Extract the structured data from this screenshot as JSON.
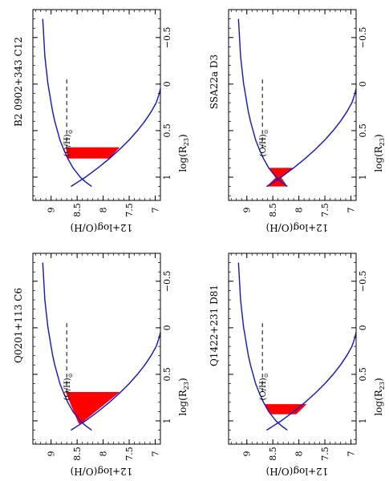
{
  "figure": {
    "panel_order_note": "",
    "chart_data": [
      {
        "type": "line",
        "title": "Q0201+113 C6",
        "xlabel": "log(R",
        "xlabel_sub": "23",
        "xlabel_close": ")",
        "ylabel": "12+log(O/H)",
        "xlim": [
          -0.8,
          1.25
        ],
        "ylim": [
          6.9,
          9.35
        ],
        "xticks": [
          "−0.5",
          "0",
          "0.5",
          "1"
        ],
        "yticks": [
          "7",
          "7.5",
          "8",
          "8.5",
          "9"
        ],
        "solar_label": "(O/H)",
        "solar_sub": "⊙",
        "solar_value": 8.7,
        "series": [
          {
            "role": "upper-branch",
            "x": [
              1.1,
              1.05,
              1.0,
              0.9,
              0.8,
              0.7,
              0.6,
              0.5,
              0.4,
              0.3,
              0.2,
              0.1,
              0.0,
              -0.1,
              -0.2,
              -0.3,
              -0.4,
              -0.5,
              -0.6,
              -0.7
            ],
            "y": [
              8.22,
              8.34,
              8.44,
              8.58,
              8.68,
              8.76,
              8.83,
              8.88,
              8.93,
              8.97,
              9.0,
              9.03,
              9.06,
              9.08,
              9.1,
              9.12,
              9.13,
              9.14,
              9.15,
              9.16
            ]
          },
          {
            "role": "lower-branch",
            "x": [
              1.1,
              1.05,
              1.0,
              0.9,
              0.8,
              0.7,
              0.6,
              0.5,
              0.4,
              0.3,
              0.2,
              0.1,
              0.05
            ],
            "y": [
              8.62,
              8.48,
              8.34,
              8.1,
              7.88,
              7.68,
              7.5,
              7.34,
              7.2,
              7.08,
              6.98,
              6.92,
              6.9
            ]
          }
        ],
        "region": {
          "x_min": 0.69,
          "x_max": 1.03,
          "polygon": [
            [
              0.69,
              8.72
            ],
            [
              1.03,
              8.47
            ],
            [
              1.03,
              8.43
            ],
            [
              0.69,
              7.68
            ]
          ]
        }
      },
      {
        "type": "line",
        "title": "B2 0902+343 C12",
        "xlabel": "log(R",
        "xlabel_sub": "23",
        "xlabel_close": ")",
        "ylabel": "12+log(O/H)",
        "xlim": [
          -0.8,
          1.25
        ],
        "ylim": [
          6.9,
          9.35
        ],
        "xticks": [
          "−0.5",
          "0",
          "0.5",
          "1"
        ],
        "yticks": [
          "7",
          "7.5",
          "8",
          "8.5",
          "9"
        ],
        "solar_label": "(O/H)",
        "solar_sub": "⊙",
        "solar_value": 8.7,
        "series": [
          {
            "role": "upper-branch",
            "x": [
              1.1,
              1.05,
              1.0,
              0.9,
              0.8,
              0.7,
              0.6,
              0.5,
              0.4,
              0.3,
              0.2,
              0.1,
              0.0,
              -0.1,
              -0.2,
              -0.3,
              -0.4,
              -0.5,
              -0.6,
              -0.7
            ],
            "y": [
              8.22,
              8.34,
              8.44,
              8.58,
              8.68,
              8.76,
              8.83,
              8.88,
              8.93,
              8.97,
              9.0,
              9.03,
              9.06,
              9.08,
              9.1,
              9.12,
              9.13,
              9.14,
              9.15,
              9.16
            ]
          },
          {
            "role": "lower-branch",
            "x": [
              1.1,
              1.05,
              1.0,
              0.9,
              0.8,
              0.7,
              0.6,
              0.5,
              0.4,
              0.3,
              0.2,
              0.1,
              0.05
            ],
            "y": [
              8.62,
              8.48,
              8.34,
              8.1,
              7.88,
              7.68,
              7.5,
              7.34,
              7.2,
              7.08,
              6.98,
              6.92,
              6.9
            ]
          }
        ],
        "region": {
          "x_min": 0.68,
          "x_max": 0.8,
          "polygon": [
            [
              0.68,
              8.72
            ],
            [
              0.8,
              8.68
            ],
            [
              0.8,
              7.88
            ],
            [
              0.68,
              7.68
            ]
          ]
        }
      },
      {
        "type": "line",
        "title": "Q1422+231 D81",
        "xlabel": "log(R",
        "xlabel_sub": "23",
        "xlabel_close": ")",
        "ylabel": "12+log(O/H)",
        "xlim": [
          -0.8,
          1.25
        ],
        "ylim": [
          6.9,
          9.35
        ],
        "xticks": [
          "−0.5",
          "0",
          "0.5",
          "1"
        ],
        "yticks": [
          "7",
          "7.5",
          "8",
          "8.5",
          "9"
        ],
        "solar_label": "(O/H)",
        "solar_sub": "⊙",
        "solar_value": 8.7,
        "series": [
          {
            "role": "upper-branch",
            "x": [
              1.1,
              1.05,
              1.0,
              0.9,
              0.8,
              0.7,
              0.6,
              0.5,
              0.4,
              0.3,
              0.2,
              0.1,
              0.0,
              -0.1,
              -0.2,
              -0.3,
              -0.4,
              -0.5,
              -0.6,
              -0.7
            ],
            "y": [
              8.22,
              8.34,
              8.44,
              8.58,
              8.68,
              8.76,
              8.83,
              8.88,
              8.93,
              8.97,
              9.0,
              9.03,
              9.06,
              9.08,
              9.1,
              9.12,
              9.13,
              9.14,
              9.15,
              9.16
            ]
          },
          {
            "role": "lower-branch",
            "x": [
              1.1,
              1.05,
              1.0,
              0.9,
              0.8,
              0.7,
              0.6,
              0.5,
              0.4,
              0.3,
              0.2,
              0.1,
              0.05
            ],
            "y": [
              8.62,
              8.48,
              8.34,
              8.1,
              7.88,
              7.68,
              7.5,
              7.34,
              7.2,
              7.08,
              6.98,
              6.92,
              6.9
            ]
          }
        ],
        "region": {
          "x_min": 0.82,
          "x_max": 0.93,
          "polygon": [
            [
              0.82,
              8.66
            ],
            [
              0.93,
              8.55
            ],
            [
              0.93,
              8.05
            ],
            [
              0.82,
              7.85
            ]
          ]
        }
      },
      {
        "type": "line",
        "title": "SSA22a D3",
        "xlabel": "log(R",
        "xlabel_sub": "23",
        "xlabel_close": ")",
        "ylabel": "12+log(O/H)",
        "xlim": [
          -0.8,
          1.25
        ],
        "ylim": [
          6.9,
          9.35
        ],
        "xticks": [
          "−0.5",
          "0",
          "0.5",
          "1"
        ],
        "yticks": [
          "7",
          "7.5",
          "8",
          "8.5",
          "9"
        ],
        "solar_label": "(O/H)",
        "solar_sub": "⊙",
        "solar_value": 8.7,
        "series": [
          {
            "role": "upper-branch",
            "x": [
              1.1,
              1.05,
              1.0,
              0.9,
              0.8,
              0.7,
              0.6,
              0.5,
              0.4,
              0.3,
              0.2,
              0.1,
              0.0,
              -0.1,
              -0.2,
              -0.3,
              -0.4,
              -0.5,
              -0.6,
              -0.7
            ],
            "y": [
              8.22,
              8.34,
              8.44,
              8.58,
              8.68,
              8.76,
              8.83,
              8.88,
              8.93,
              8.97,
              9.0,
              9.03,
              9.06,
              9.08,
              9.1,
              9.12,
              9.13,
              9.14,
              9.15,
              9.16
            ]
          },
          {
            "role": "lower-branch",
            "x": [
              1.1,
              1.05,
              1.0,
              0.9,
              0.8,
              0.7,
              0.6,
              0.5,
              0.4,
              0.3,
              0.2,
              0.1,
              0.05
            ],
            "y": [
              8.62,
              8.48,
              8.34,
              8.1,
              7.88,
              7.68,
              7.5,
              7.34,
              7.2,
              7.08,
              6.98,
              6.92,
              6.9
            ]
          }
        ],
        "region": {
          "x_min": 0.9,
          "x_max": 1.1,
          "polygon": [
            [
              0.9,
              8.58
            ],
            [
              1.0,
              8.44
            ],
            [
              1.1,
              8.62
            ],
            [
              1.1,
              8.22
            ],
            [
              1.0,
              8.34
            ],
            [
              0.9,
              8.1
            ]
          ]
        }
      }
    ],
    "colors": {
      "curve": "#1010e0",
      "region": "#ff0000",
      "ink": "#000000"
    }
  }
}
